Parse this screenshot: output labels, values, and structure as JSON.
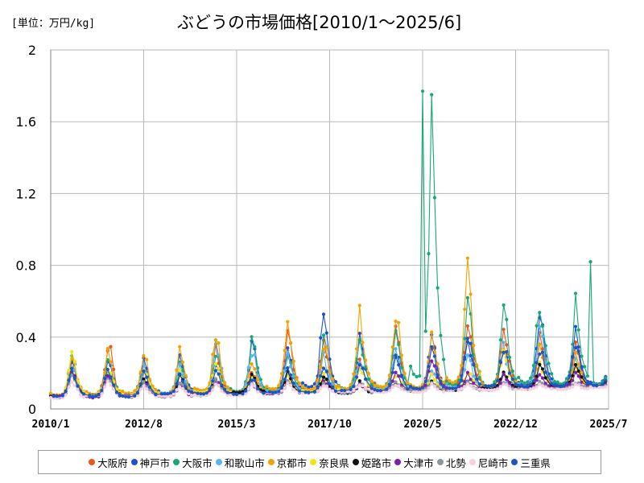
{
  "unit_label": "[単位：万円/kg]",
  "title": "ぶどうの市場価格[2010/1～2025/6]",
  "chart_data": {
    "type": "line",
    "ylim": [
      0,
      2
    ],
    "y_ticks": [
      "0",
      "0.4",
      "0.8",
      "1.2",
      "1.6",
      "2"
    ],
    "x_ticks": [
      "2010/1",
      "2012/8",
      "2015/3",
      "2017/10",
      "2020/5",
      "2022/12",
      "2025/7"
    ],
    "x_range": [
      "2010/1",
      "2025/7"
    ],
    "grid": true,
    "legend_position": "bottom",
    "peak_annotations": [
      {
        "series": "大阪市",
        "date": "2020/5",
        "y": 1.77
      },
      {
        "series": "京都市",
        "date": "2021/8",
        "y": 0.84
      },
      {
        "series": "大阪市",
        "date": "2025/1",
        "y": 0.82
      }
    ],
    "series": [
      {
        "name": "大阪府",
        "color": "#e8581c",
        "peaks": [
          0.28,
          0.4,
          0.27,
          0.22,
          0.34,
          0.2,
          0.44,
          0.41,
          0.32,
          0.51,
          0.41,
          0.56,
          0.45,
          0.4,
          0.36,
          0.32,
          0.4
        ]
      },
      {
        "name": "神戸市",
        "color": "#1f4fd1",
        "peaks": [
          0.3,
          0.31,
          0.31,
          0.32,
          0.25,
          0.38,
          0.35,
          0.59,
          0.45,
          0.35,
          0.4,
          0.44,
          0.37,
          0.54,
          0.4,
          0.45,
          0.45
        ]
      },
      {
        "name": "大阪市",
        "color": "#17a77a",
        "peaks": [
          0.32,
          0.3,
          0.25,
          0.26,
          0.33,
          0.42,
          0.3,
          0.39,
          0.4,
          0.47,
          1.77,
          0.66,
          0.58,
          0.67,
          0.63,
          0.4,
          0.82
        ]
      },
      {
        "name": "和歌山市",
        "color": "#5bb6e8",
        "peaks": [
          0.25,
          0.25,
          0.27,
          0.25,
          0.4,
          0.35,
          0.3,
          0.3,
          0.3,
          0.35,
          0.22,
          0.3,
          0.35,
          0.47,
          0.3,
          0.3,
          0.33
        ]
      },
      {
        "name": "京都市",
        "color": "#f0a400",
        "peaks": [
          0.3,
          0.32,
          0.35,
          0.33,
          0.44,
          0.25,
          0.54,
          0.4,
          0.54,
          0.56,
          0.42,
          0.84,
          0.4,
          0.35,
          0.3,
          0.3,
          0.4
        ]
      },
      {
        "name": "奈良県",
        "color": "#f2e31a",
        "peaks": [
          0.34,
          0.25,
          0.22,
          0.22,
          0.25,
          0.2,
          0.2,
          0.2,
          0.25,
          0.2,
          0.2,
          0.22,
          0.35,
          0.25,
          0.25,
          0.25,
          0.3
        ]
      },
      {
        "name": "姫路市",
        "color": "#111111",
        "peaks": [
          0.2,
          0.2,
          0.18,
          0.18,
          0.18,
          0.2,
          0.2,
          0.18,
          0.15,
          0.15,
          0.15,
          0.15,
          0.2,
          0.25,
          0.25,
          0.25,
          0.25
        ]
      },
      {
        "name": "大津市",
        "color": "#7d1fa8",
        "peaks": [
          0.22,
          0.2,
          0.16,
          0.15,
          0.16,
          0.15,
          0.15,
          0.15,
          0.15,
          0.2,
          0.3,
          0.2,
          0.2,
          0.2,
          0.2,
          0.2,
          0.2
        ]
      },
      {
        "name": "北勢",
        "color": "#8c96a3",
        "peaks": [
          0.2,
          0.18,
          0.16,
          0.15,
          0.16,
          0.15,
          0.15,
          0.15,
          0.15,
          0.15,
          0.15,
          0.15,
          0.15,
          0.15,
          0.15,
          0.15,
          0.15
        ]
      },
      {
        "name": "尼崎市",
        "color": "#f6cfe0",
        "peaks": [
          0.18,
          0.16,
          0.14,
          0.14,
          0.14,
          0.14,
          0.14,
          0.14,
          0.14,
          0.14,
          0.14,
          0.14,
          0.14,
          0.14,
          0.14,
          0.14,
          0.14
        ]
      },
      {
        "name": "三重県",
        "color": "#1b56c4",
        "peaks": [
          0.22,
          0.25,
          0.2,
          0.2,
          0.22,
          0.18,
          0.25,
          0.25,
          0.25,
          0.3,
          0.35,
          0.42,
          0.36,
          0.35,
          0.43,
          0.35,
          0.45
        ]
      }
    ]
  }
}
